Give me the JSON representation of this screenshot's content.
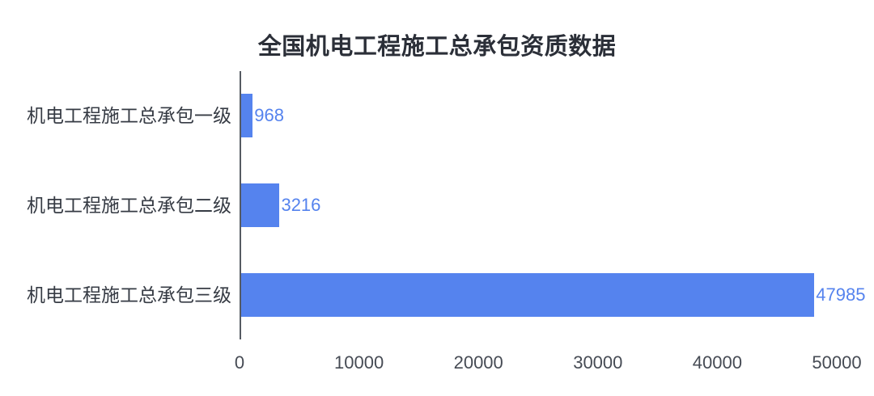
{
  "chart_data": {
    "type": "bar",
    "orientation": "horizontal",
    "title": "全国机电工程施工总承包资质数据",
    "categories": [
      "机电工程施工总承包一级",
      "机电工程施工总承包二级",
      "机电工程施工总承包三级"
    ],
    "values": [
      968,
      3216,
      47985
    ],
    "value_labels": [
      "968",
      "3216",
      "47985"
    ],
    "x_ticks": [
      "0",
      "10000",
      "20000",
      "30000",
      "40000",
      "50000"
    ],
    "x_tick_values": [
      0,
      10000,
      20000,
      30000,
      40000,
      50000
    ],
    "xlim": [
      0,
      50000
    ],
    "xlabel": "",
    "ylabel": "",
    "grid": false,
    "legend_visible": false,
    "colors": {
      "bar": "#5583ee",
      "value_label": "#5583ee",
      "axis_line": "#565b63",
      "title_text": "#2b2f38",
      "category_text": "#363b44",
      "tick_text": "#464b54",
      "background": "#ffffff"
    }
  }
}
